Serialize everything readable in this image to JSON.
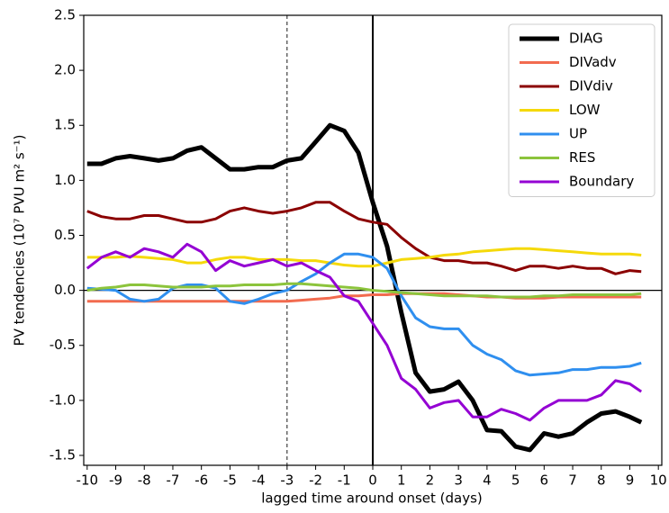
{
  "chart_data": {
    "type": "line",
    "xlabel": "lagged time around onset (days)",
    "ylabel": "PV tendencies (10⁷ PVU m² s⁻¹)",
    "x": [
      -10,
      -9.5,
      -9,
      -8.5,
      -8,
      -7.5,
      -7,
      -6.5,
      -6,
      -5.5,
      -5,
      -4.5,
      -4,
      -3.5,
      -3,
      -2.5,
      -2,
      -1.5,
      -1,
      -0.5,
      0,
      0.5,
      1,
      1.5,
      2,
      2.5,
      3,
      3.5,
      4,
      4.5,
      5,
      5.5,
      6,
      6.5,
      7,
      7.5,
      8,
      8.5,
      9,
      9.4
    ],
    "series": [
      {
        "name": "DIAG",
        "color": "#000000",
        "width": 5,
        "values": [
          1.15,
          1.15,
          1.2,
          1.22,
          1.2,
          1.18,
          1.2,
          1.27,
          1.3,
          1.2,
          1.1,
          1.1,
          1.12,
          1.12,
          1.18,
          1.2,
          1.35,
          1.5,
          1.45,
          1.25,
          0.8,
          0.4,
          -0.2,
          -0.75,
          -0.92,
          -0.9,
          -0.83,
          -1.0,
          -1.27,
          -1.28,
          -1.42,
          -1.45,
          -1.3,
          -1.33,
          -1.3,
          -1.2,
          -1.12,
          -1.1,
          -1.15,
          -1.2
        ]
      },
      {
        "name": "DIVadv",
        "color": "#f26b4f",
        "width": 3,
        "values": [
          -0.1,
          -0.1,
          -0.1,
          -0.1,
          -0.1,
          -0.1,
          -0.1,
          -0.1,
          -0.1,
          -0.1,
          -0.1,
          -0.1,
          -0.1,
          -0.1,
          -0.1,
          -0.09,
          -0.08,
          -0.07,
          -0.05,
          -0.05,
          -0.04,
          -0.04,
          -0.03,
          -0.03,
          -0.03,
          -0.03,
          -0.04,
          -0.05,
          -0.06,
          -0.06,
          -0.07,
          -0.07,
          -0.07,
          -0.06,
          -0.06,
          -0.06,
          -0.06,
          -0.06,
          -0.06,
          -0.06
        ]
      },
      {
        "name": "DIVdiv",
        "color": "#8b0000",
        "width": 3,
        "values": [
          0.72,
          0.67,
          0.65,
          0.65,
          0.68,
          0.68,
          0.65,
          0.62,
          0.62,
          0.65,
          0.72,
          0.75,
          0.72,
          0.7,
          0.72,
          0.75,
          0.8,
          0.8,
          0.72,
          0.65,
          0.62,
          0.6,
          0.48,
          0.38,
          0.3,
          0.27,
          0.27,
          0.25,
          0.25,
          0.22,
          0.18,
          0.22,
          0.22,
          0.2,
          0.22,
          0.2,
          0.2,
          0.15,
          0.18,
          0.17
        ]
      },
      {
        "name": "LOW",
        "color": "#f5d90a",
        "width": 3,
        "values": [
          0.3,
          0.3,
          0.3,
          0.31,
          0.3,
          0.29,
          0.28,
          0.25,
          0.25,
          0.28,
          0.3,
          0.3,
          0.28,
          0.28,
          0.28,
          0.27,
          0.27,
          0.25,
          0.23,
          0.22,
          0.22,
          0.25,
          0.28,
          0.29,
          0.3,
          0.32,
          0.33,
          0.35,
          0.36,
          0.37,
          0.38,
          0.38,
          0.37,
          0.36,
          0.35,
          0.34,
          0.33,
          0.33,
          0.33,
          0.32
        ]
      },
      {
        "name": "UP",
        "color": "#2f8fef",
        "width": 3,
        "values": [
          0.02,
          0.01,
          0.0,
          -0.08,
          -0.1,
          -0.08,
          0.02,
          0.05,
          0.05,
          0.02,
          -0.1,
          -0.12,
          -0.08,
          -0.03,
          0.0,
          0.08,
          0.15,
          0.25,
          0.33,
          0.33,
          0.3,
          0.2,
          -0.05,
          -0.25,
          -0.33,
          -0.35,
          -0.35,
          -0.5,
          -0.58,
          -0.63,
          -0.73,
          -0.77,
          -0.76,
          -0.75,
          -0.72,
          -0.72,
          -0.7,
          -0.7,
          -0.69,
          -0.66
        ]
      },
      {
        "name": "RES",
        "color": "#8cc43c",
        "width": 3,
        "values": [
          0.0,
          0.02,
          0.03,
          0.05,
          0.05,
          0.04,
          0.03,
          0.03,
          0.03,
          0.04,
          0.04,
          0.05,
          0.05,
          0.05,
          0.06,
          0.06,
          0.05,
          0.04,
          0.03,
          0.02,
          0.0,
          -0.01,
          -0.02,
          -0.03,
          -0.04,
          -0.05,
          -0.05,
          -0.05,
          -0.05,
          -0.06,
          -0.06,
          -0.06,
          -0.05,
          -0.05,
          -0.04,
          -0.04,
          -0.04,
          -0.04,
          -0.04,
          -0.03
        ]
      },
      {
        "name": "Boundary",
        "color": "#9400d3",
        "width": 3,
        "values": [
          0.2,
          0.3,
          0.35,
          0.3,
          0.38,
          0.35,
          0.3,
          0.42,
          0.35,
          0.18,
          0.27,
          0.22,
          0.25,
          0.28,
          0.22,
          0.25,
          0.18,
          0.12,
          -0.05,
          -0.1,
          -0.3,
          -0.5,
          -0.8,
          -0.9,
          -1.07,
          -1.02,
          -1.0,
          -1.15,
          -1.15,
          -1.08,
          -1.12,
          -1.18,
          -1.07,
          -1.0,
          -1.0,
          -1.0,
          -0.95,
          -0.82,
          -0.85,
          -0.92
        ]
      }
    ],
    "xlim": [
      -10.12,
      10.12
    ],
    "ylim": [
      -1.59,
      2.5
    ],
    "xticks": [
      -10,
      -9,
      -8,
      -7,
      -6,
      -5,
      -4,
      -3,
      -2,
      -1,
      0,
      1,
      2,
      3,
      4,
      5,
      6,
      7,
      8,
      9,
      10
    ],
    "yticks": [
      {
        "value": 2.5,
        "label": "2.5"
      },
      {
        "value": 2,
        "label": "2.0"
      },
      {
        "value": 1.5,
        "label": "1.5"
      },
      {
        "value": 1,
        "label": "1.0"
      },
      {
        "value": 0.5,
        "label": "0.5"
      },
      {
        "value": 0,
        "label": "0.0"
      },
      {
        "value": -0.5,
        "label": "-0.5"
      },
      {
        "value": -1,
        "label": "-1.0"
      },
      {
        "value": -1.5,
        "label": "-1.5"
      }
    ],
    "vlines": [
      {
        "value": -3,
        "style": "dashed"
      },
      {
        "value": 0,
        "style": "solid"
      }
    ],
    "hline": 0,
    "legend": "upper right"
  }
}
